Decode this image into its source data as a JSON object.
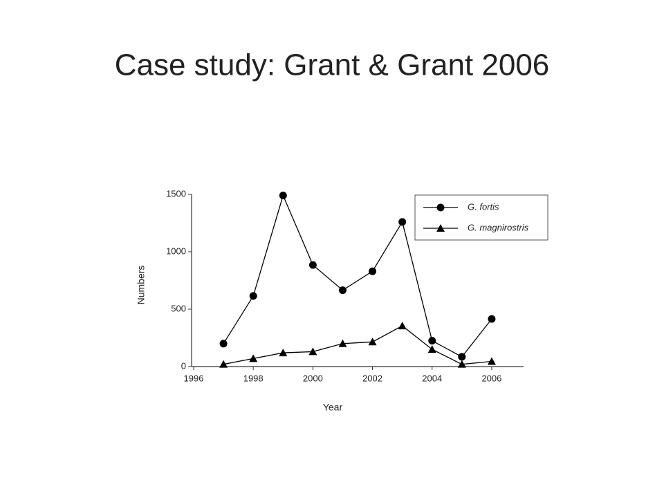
{
  "slide_title": "Case study: Grant & Grant 2006",
  "chart_data": {
    "type": "line",
    "x_label": "Year",
    "y_label": "Numbers",
    "x": [
      1997,
      1998,
      1999,
      2000,
      2001,
      2002,
      2003,
      2004,
      2005,
      2006
    ],
    "series": [
      {
        "name": "G. fortis",
        "color": "#000000",
        "marker": "circle",
        "values": [
          200,
          615,
          1490,
          885,
          665,
          830,
          1260,
          225,
          85,
          415
        ]
      },
      {
        "name": "G. magnirostris",
        "color": "#000000",
        "marker": "triangle",
        "values": [
          20,
          70,
          120,
          130,
          200,
          215,
          355,
          150,
          20,
          45
        ]
      }
    ],
    "xlim": [
      1996,
      2007
    ],
    "xticks": [
      1996,
      1998,
      2000,
      2002,
      2004,
      2006
    ],
    "ylim": [
      0,
      1500
    ],
    "yticks": [
      0,
      500,
      1000,
      1500
    ],
    "grid": false,
    "legend": "upper right"
  }
}
